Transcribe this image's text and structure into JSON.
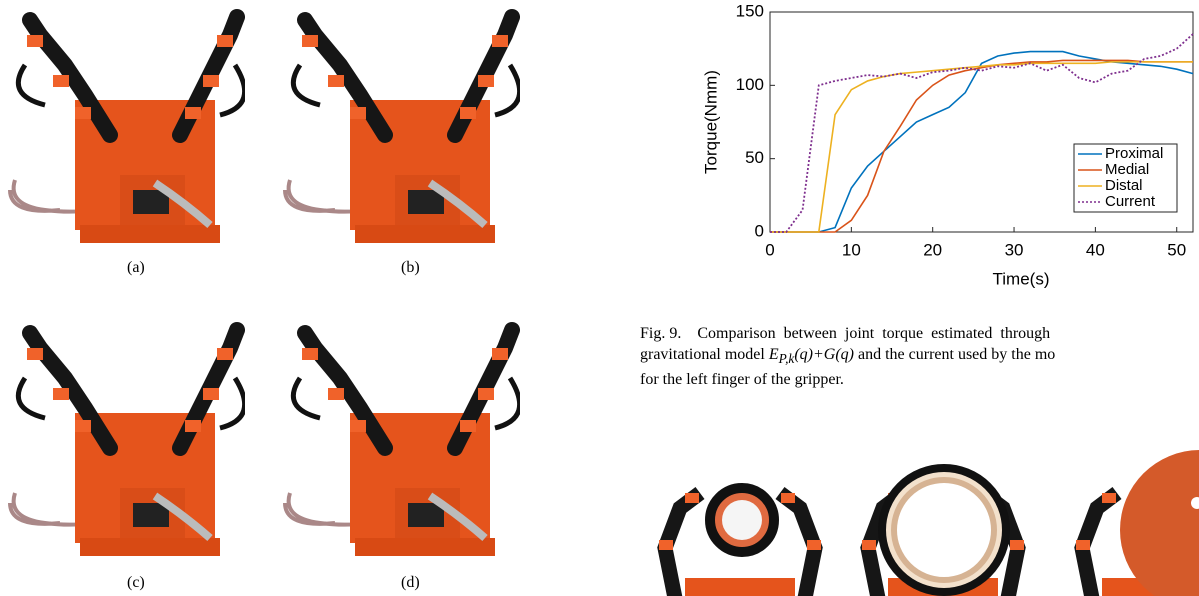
{
  "photo_captions": [
    "(a)",
    "(b)",
    "(c)",
    "(d)"
  ],
  "chart_data": {
    "type": "line",
    "xlabel": "Time(s)",
    "ylabel": "Torque(Nmm)",
    "x": [
      0,
      2,
      4,
      6,
      8,
      10,
      12,
      14,
      16,
      18,
      20,
      22,
      24,
      26,
      28,
      30,
      32,
      34,
      36,
      38,
      40,
      42,
      44,
      46,
      48,
      50,
      52
    ],
    "series": [
      {
        "name": "Proximal",
        "color": "#0072bd",
        "style": "solid",
        "values": [
          0,
          0,
          0,
          0,
          3,
          30,
          45,
          55,
          65,
          75,
          80,
          85,
          95,
          115,
          120,
          122,
          123,
          123,
          123,
          120,
          118,
          116,
          115,
          114,
          113,
          111,
          108
        ]
      },
      {
        "name": "Medial",
        "color": "#d95319",
        "style": "solid",
        "values": [
          0,
          0,
          0,
          0,
          0,
          8,
          25,
          55,
          72,
          90,
          100,
          107,
          110,
          112,
          114,
          115,
          116,
          116,
          117,
          117,
          117,
          117,
          117,
          116,
          116,
          116,
          116
        ]
      },
      {
        "name": "Distal",
        "color": "#edb120",
        "style": "solid",
        "values": [
          0,
          0,
          0,
          0,
          80,
          97,
          103,
          106,
          108,
          109,
          110,
          111,
          112,
          113,
          114,
          114,
          115,
          115,
          115,
          115,
          115,
          116,
          116,
          116,
          116,
          116,
          116
        ]
      },
      {
        "name": "Current",
        "color": "#7e2f8e",
        "style": "dotted",
        "values": [
          0,
          0,
          15,
          100,
          103,
          105,
          107,
          106,
          108,
          105,
          109,
          110,
          112,
          110,
          113,
          112,
          115,
          110,
          114,
          105,
          102,
          108,
          110,
          118,
          120,
          125,
          135
        ]
      }
    ],
    "xlim": [
      0,
      52
    ],
    "xticks": [
      0,
      10,
      20,
      30,
      40,
      50
    ],
    "ylim": [
      0,
      150
    ],
    "yticks": [
      0,
      50,
      100,
      150
    ],
    "legend": "lower right"
  },
  "caption": {
    "label": "Fig. 9.",
    "line1": "Comparison between joint torque estimated through",
    "line2": [
      "gravitational model ",
      "E",
      "P,k",
      "(q)+G(q)",
      " and the current used by the mo"
    ],
    "line3": "for the left finger of the gripper."
  }
}
